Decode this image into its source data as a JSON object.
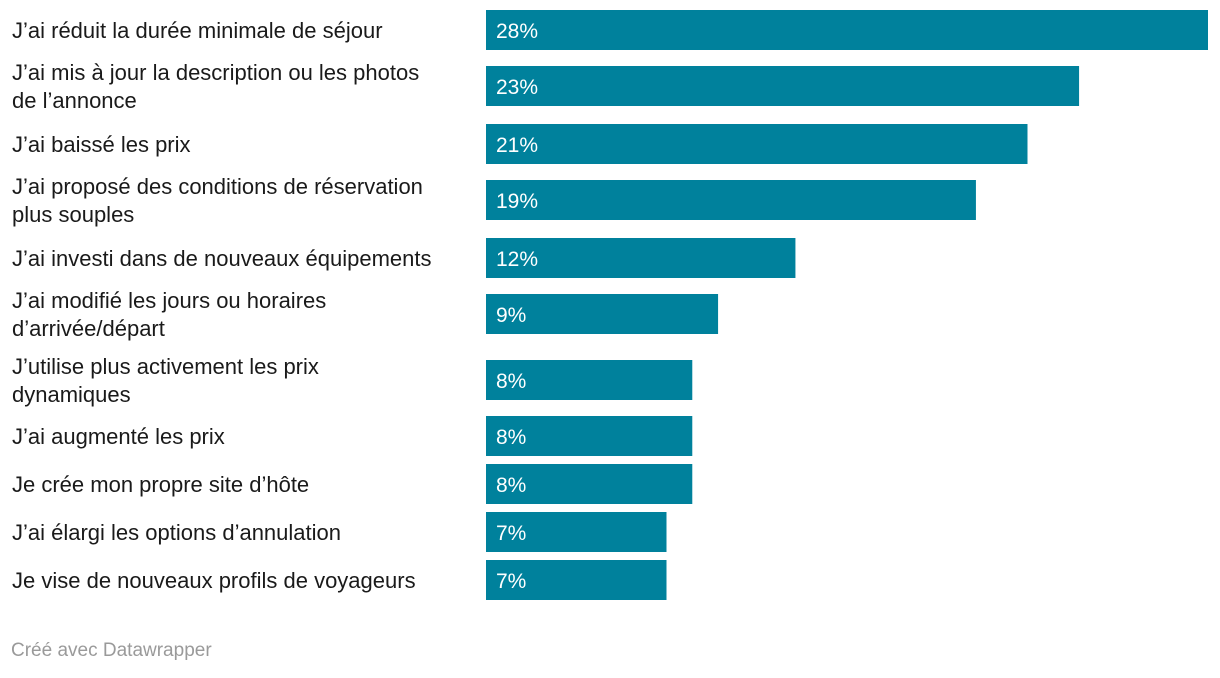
{
  "chart_data": {
    "type": "bar",
    "orientation": "horizontal",
    "title": "",
    "xlabel": "",
    "ylabel": "",
    "xlim": [
      0,
      28
    ],
    "unit": "%",
    "bar_color": "#00819c",
    "categories": [
      [
        "J’ai réduit la durée minimale de séjour"
      ],
      [
        "J’ai mis à jour la description ou les photos",
        "de l’annonce"
      ],
      [
        "J’ai baissé les prix"
      ],
      [
        "J’ai proposé des conditions de réservation",
        "plus souples"
      ],
      [
        "J’ai investi dans de nouveaux équipements"
      ],
      [
        "J’ai modifié les jours ou horaires",
        "d’arrivée/départ"
      ],
      [
        "J’utilise plus activement les prix",
        "dynamiques"
      ],
      [
        "J’ai augmenté les prix"
      ],
      [
        "Je crée mon propre site d’hôte"
      ],
      [
        "J’ai élargi les options d’annulation"
      ],
      [
        "Je vise de nouveaux profils de voyageurs"
      ]
    ],
    "values": [
      28,
      23,
      21,
      19,
      12,
      9,
      8,
      8,
      8,
      7,
      7
    ],
    "value_labels": [
      "28%",
      "23%",
      "21%",
      "19%",
      "12%",
      "9%",
      "8%",
      "8%",
      "8%",
      "7%",
      "7%"
    ]
  },
  "footer": {
    "credit": "Créé avec Datawrapper"
  }
}
